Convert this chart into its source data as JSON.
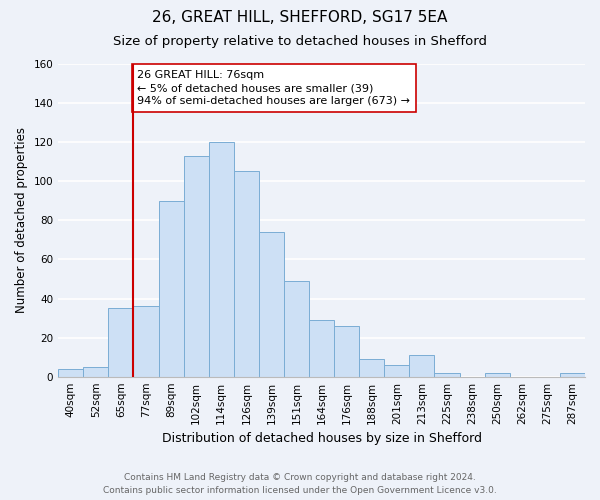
{
  "title": "26, GREAT HILL, SHEFFORD, SG17 5EA",
  "subtitle": "Size of property relative to detached houses in Shefford",
  "xlabel": "Distribution of detached houses by size in Shefford",
  "ylabel": "Number of detached properties",
  "bin_labels": [
    "40sqm",
    "52sqm",
    "65sqm",
    "77sqm",
    "89sqm",
    "102sqm",
    "114sqm",
    "126sqm",
    "139sqm",
    "151sqm",
    "164sqm",
    "176sqm",
    "188sqm",
    "201sqm",
    "213sqm",
    "225sqm",
    "238sqm",
    "250sqm",
    "262sqm",
    "275sqm",
    "287sqm"
  ],
  "bar_heights": [
    4,
    5,
    35,
    36,
    90,
    113,
    120,
    105,
    74,
    49,
    29,
    26,
    9,
    6,
    11,
    2,
    0,
    2,
    0,
    0,
    2
  ],
  "bar_color": "#cde0f5",
  "bar_edge_color": "#7aadd4",
  "vline_x": 2.5,
  "vline_color": "#cc0000",
  "annotation_text": "26 GREAT HILL: 76sqm\n← 5% of detached houses are smaller (39)\n94% of semi-detached houses are larger (673) →",
  "annotation_box_color": "#ffffff",
  "annotation_box_edge": "#cc0000",
  "ylim": [
    0,
    160
  ],
  "yticks": [
    0,
    20,
    40,
    60,
    80,
    100,
    120,
    140,
    160
  ],
  "footer_text": "Contains HM Land Registry data © Crown copyright and database right 2024.\nContains public sector information licensed under the Open Government Licence v3.0.",
  "background_color": "#eef2f9",
  "grid_color": "#ffffff",
  "title_fontsize": 11,
  "subtitle_fontsize": 9.5,
  "xlabel_fontsize": 9,
  "ylabel_fontsize": 8.5,
  "tick_fontsize": 7.5,
  "footer_fontsize": 6.5,
  "ann_fontsize": 8
}
